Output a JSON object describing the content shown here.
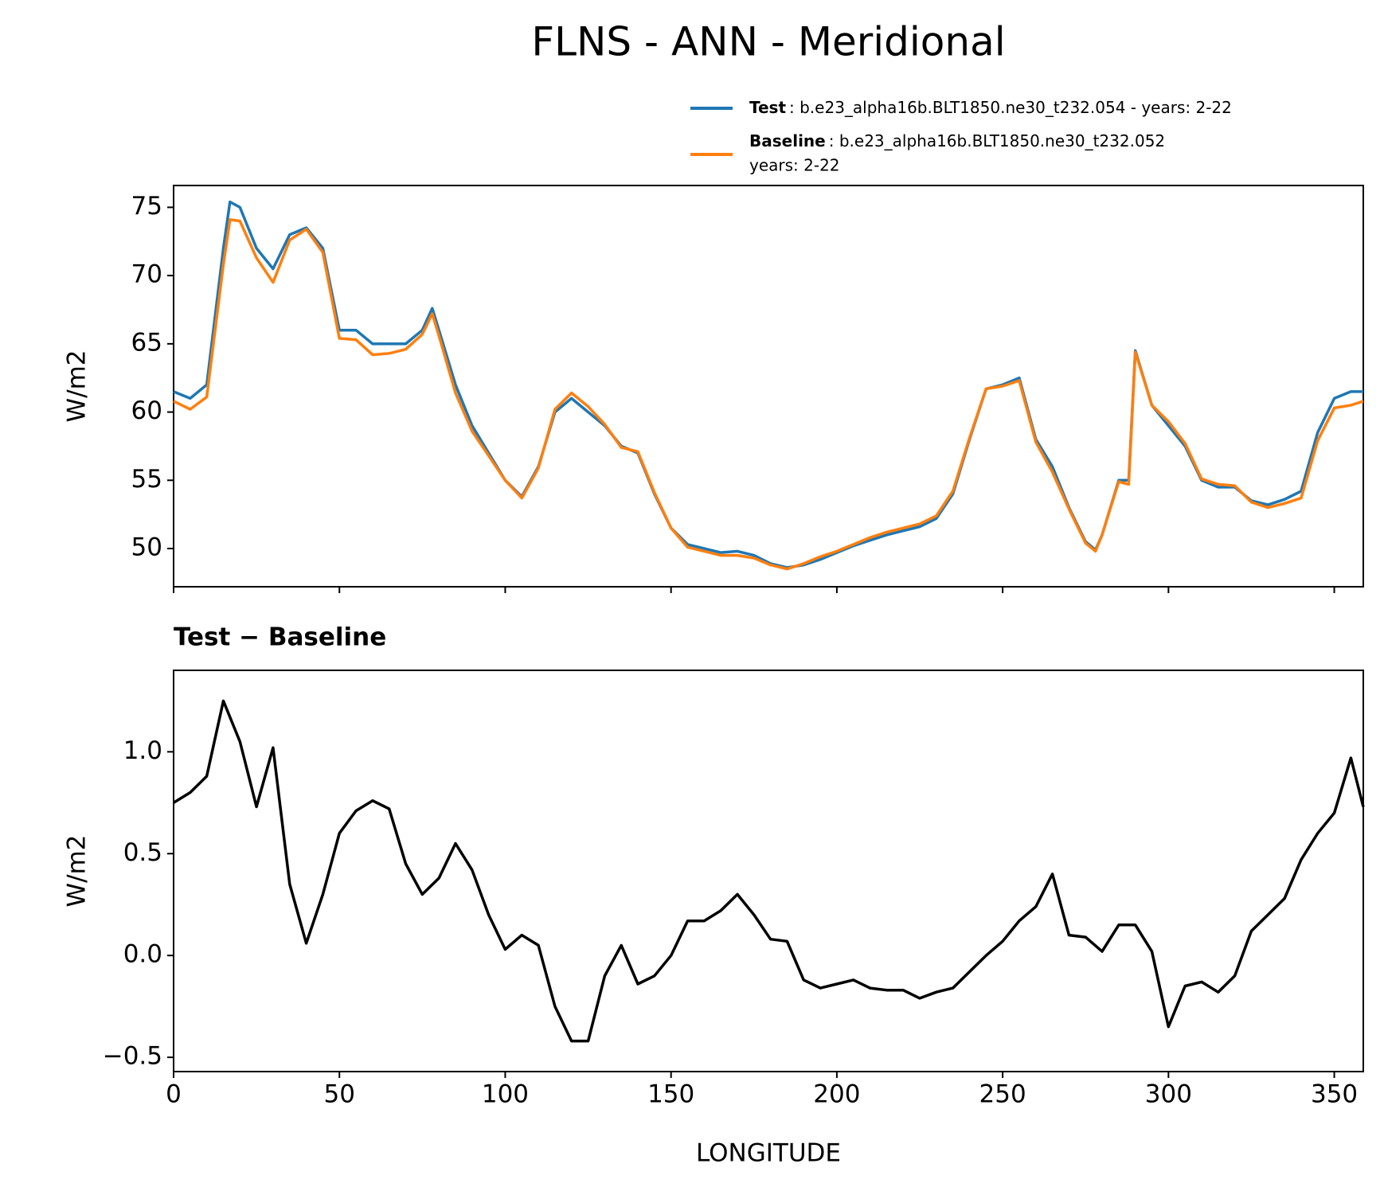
{
  "title": "FLNS - ANN - Meridional",
  "chart_data": [
    {
      "type": "line",
      "ylabel": "W/m2",
      "xlim": [
        0,
        358.75
      ],
      "ylim": [
        47.2,
        76.6
      ],
      "xticks": [
        0,
        50,
        100,
        150,
        200,
        250,
        300,
        350
      ],
      "yticks": [
        50,
        55,
        60,
        65,
        70,
        75
      ],
      "x": [
        0,
        5,
        10,
        15,
        17,
        20,
        25,
        30,
        35,
        40,
        45,
        50,
        55,
        60,
        65,
        70,
        75,
        78,
        80,
        85,
        90,
        95,
        100,
        105,
        110,
        115,
        120,
        125,
        130,
        135,
        140,
        145,
        150,
        155,
        160,
        165,
        170,
        175,
        180,
        185,
        190,
        195,
        200,
        205,
        210,
        215,
        220,
        225,
        230,
        235,
        240,
        245,
        250,
        255,
        260,
        265,
        270,
        275,
        278,
        280,
        285,
        288,
        290,
        295,
        300,
        305,
        310,
        315,
        320,
        325,
        330,
        335,
        340,
        345,
        350,
        355,
        358.75
      ],
      "series": [
        {
          "name": "Test",
          "description": [
            ": b.e23_alpha16b.BLT1850.ne30_t232.054 - years: 2-22"
          ],
          "color": "#1f77b4",
          "values": [
            61.5,
            61,
            62,
            72,
            75.4,
            75,
            72,
            70.5,
            73,
            73.5,
            72,
            66,
            66,
            65,
            65,
            65,
            66,
            67.6,
            66,
            62,
            59,
            57,
            55,
            53.8,
            56,
            60,
            61,
            60,
            59,
            57.5,
            57,
            54,
            51.5,
            50.3,
            50,
            49.7,
            49.8,
            49.5,
            48.9,
            48.6,
            48.8,
            49.2,
            49.7,
            50.2,
            50.6,
            51,
            51.3,
            51.6,
            52.2,
            54,
            58,
            61.7,
            62,
            62.5,
            58,
            56,
            53,
            50.5,
            49.9,
            51,
            55,
            55,
            64.5,
            60.5,
            59,
            57.5,
            55,
            54.5,
            54.5,
            53.5,
            53.2,
            53.6,
            54.2,
            58.5,
            61,
            61.5,
            61.5
          ]
        },
        {
          "name": "Baseline",
          "description": [
            ": b.e23_alpha16b.BLT1850.ne30_t232.052",
            "years: 2-22"
          ],
          "color": "#ff7f0e",
          "values": [
            60.8,
            60.2,
            61.1,
            70.8,
            74.1,
            74,
            71.3,
            69.5,
            72.6,
            73.4,
            71.7,
            65.4,
            65.3,
            64.2,
            64.3,
            64.6,
            65.7,
            67.2,
            65.6,
            61.4,
            58.6,
            56.8,
            55,
            53.7,
            55.9,
            60.2,
            61.4,
            60.4,
            59.1,
            57.4,
            57.1,
            54.1,
            51.5,
            50.1,
            49.8,
            49.5,
            49.5,
            49.3,
            48.8,
            48.5,
            48.9,
            49.4,
            49.8,
            50.3,
            50.8,
            51.2,
            51.5,
            51.8,
            52.4,
            54.2,
            58.1,
            61.7,
            61.9,
            62.3,
            57.8,
            55.6,
            52.9,
            50.4,
            49.8,
            51,
            54.9,
            54.7,
            64.4,
            60.5,
            59.3,
            57.7,
            55.1,
            54.7,
            54.6,
            53.4,
            53,
            53.3,
            53.7,
            57.9,
            60.3,
            60.5,
            60.8
          ]
        }
      ]
    },
    {
      "type": "line",
      "title": "Test − Baseline",
      "xlabel": "LONGITUDE",
      "ylabel": "W/m2",
      "xlim": [
        0,
        358.75
      ],
      "ylim": [
        -0.57,
        1.4
      ],
      "xticks": [
        0,
        50,
        100,
        150,
        200,
        250,
        300,
        350
      ],
      "yticks": [
        {
          "value": -0.5,
          "label": "−0.5"
        },
        {
          "value": 0,
          "label": "0.0"
        },
        0.5,
        {
          "value": 1,
          "label": "1.0"
        }
      ],
      "x": [
        0,
        5,
        10,
        15,
        20,
        25,
        30,
        35,
        40,
        45,
        50,
        55,
        60,
        65,
        70,
        75,
        80,
        85,
        90,
        95,
        100,
        105,
        110,
        115,
        120,
        125,
        130,
        135,
        140,
        145,
        150,
        155,
        160,
        165,
        170,
        175,
        180,
        185,
        190,
        195,
        200,
        205,
        210,
        215,
        220,
        225,
        230,
        235,
        240,
        245,
        250,
        255,
        260,
        265,
        270,
        275,
        280,
        285,
        290,
        295,
        300,
        305,
        310,
        315,
        320,
        325,
        330,
        335,
        340,
        345,
        350,
        355,
        358.75
      ],
      "series": [
        {
          "color": "#000000",
          "values": [
            0.75,
            0.8,
            0.88,
            1.25,
            1.05,
            0.73,
            1.02,
            0.35,
            0.06,
            0.3,
            0.6,
            0.71,
            0.76,
            0.72,
            0.45,
            0.3,
            0.38,
            0.55,
            0.42,
            0.2,
            0.03,
            0.1,
            0.05,
            -0.25,
            -0.42,
            -0.42,
            -0.1,
            0.05,
            -0.14,
            -0.1,
            0,
            0.17,
            0.17,
            0.22,
            0.3,
            0.2,
            0.08,
            0.07,
            -0.12,
            -0.16,
            -0.14,
            -0.12,
            -0.16,
            -0.17,
            -0.17,
            -0.21,
            -0.18,
            -0.16,
            -0.08,
            0,
            0.07,
            0.17,
            0.24,
            0.4,
            0.1,
            0.09,
            0.02,
            0.15,
            0.15,
            0.02,
            -0.35,
            -0.15,
            -0.13,
            -0.18,
            -0.1,
            0.12,
            0.2,
            0.28,
            0.47,
            0.6,
            0.7,
            0.97,
            0.73
          ]
        }
      ]
    }
  ]
}
